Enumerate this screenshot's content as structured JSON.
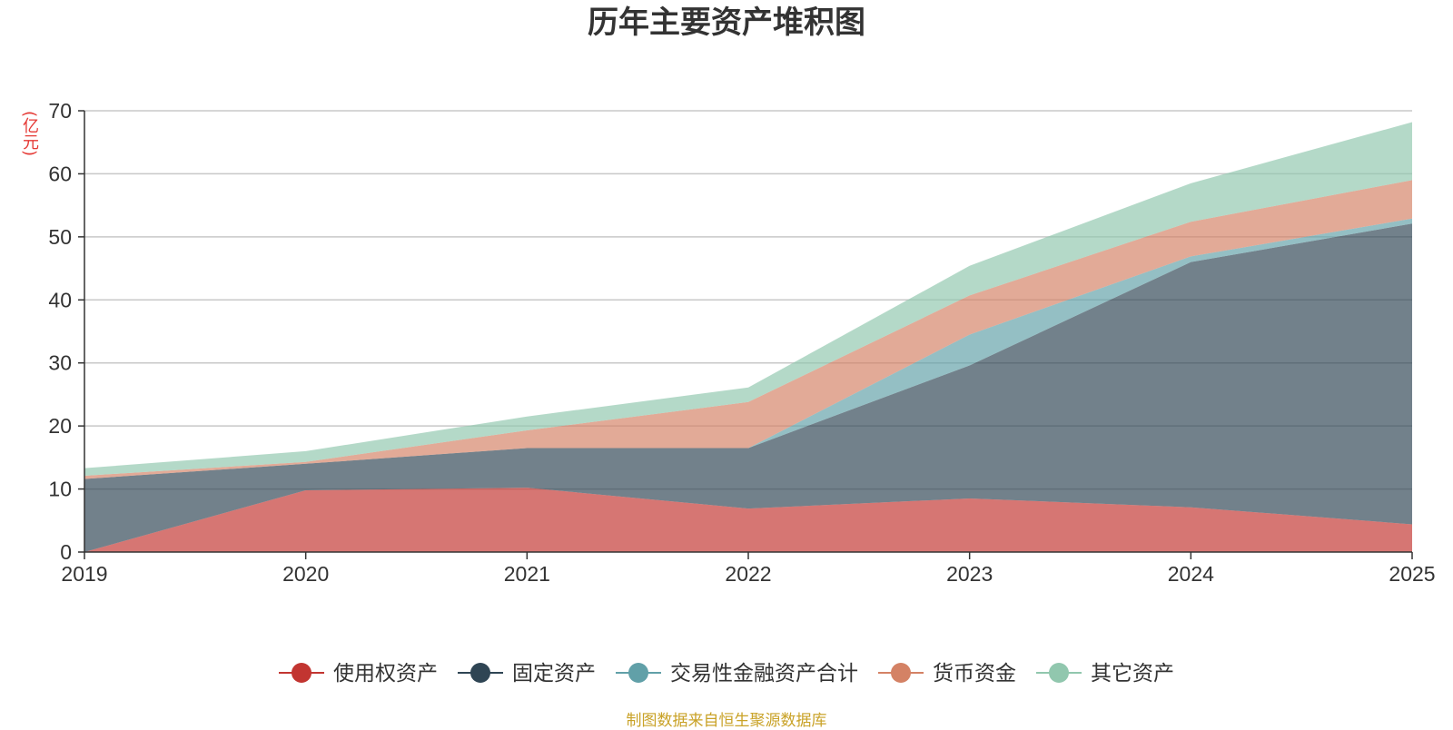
{
  "chart_data": {
    "type": "area",
    "title": "历年主要资产堆积图",
    "ylabel": "(亿元)",
    "xlabel": "",
    "ylim": [
      0,
      70
    ],
    "yticks": [
      0,
      10,
      20,
      30,
      40,
      50,
      60,
      70
    ],
    "categories": [
      "2019",
      "2020",
      "2021",
      "2022",
      "2023",
      "2024",
      "2025"
    ],
    "stacked": true,
    "series": [
      {
        "name": "使用权资产",
        "color": "#c23531",
        "values": [
          0,
          9.8,
          10.2,
          6.9,
          8.5,
          7.1,
          4.4
        ]
      },
      {
        "name": "固定资产",
        "color": "#2f4554",
        "values": [
          11.6,
          4.2,
          6.3,
          9.6,
          21.1,
          38.9,
          47.7
        ]
      },
      {
        "name": "交易性金融资产合计",
        "color": "#61a0a8",
        "values": [
          0,
          0,
          0,
          0,
          4.9,
          0.9,
          0.8
        ]
      },
      {
        "name": "货币资金",
        "color": "#d48265",
        "values": [
          0.5,
          0.3,
          2.8,
          7.3,
          6.2,
          5.5,
          6.1
        ]
      },
      {
        "name": "其它资产",
        "color": "#91c7ae",
        "values": [
          1.2,
          1.7,
          2.2,
          2.3,
          4.7,
          6.1,
          9.2
        ]
      }
    ],
    "legend_position": "bottom",
    "grid": true
  },
  "footer": {
    "source": "制图数据来自恒生聚源数据库"
  }
}
